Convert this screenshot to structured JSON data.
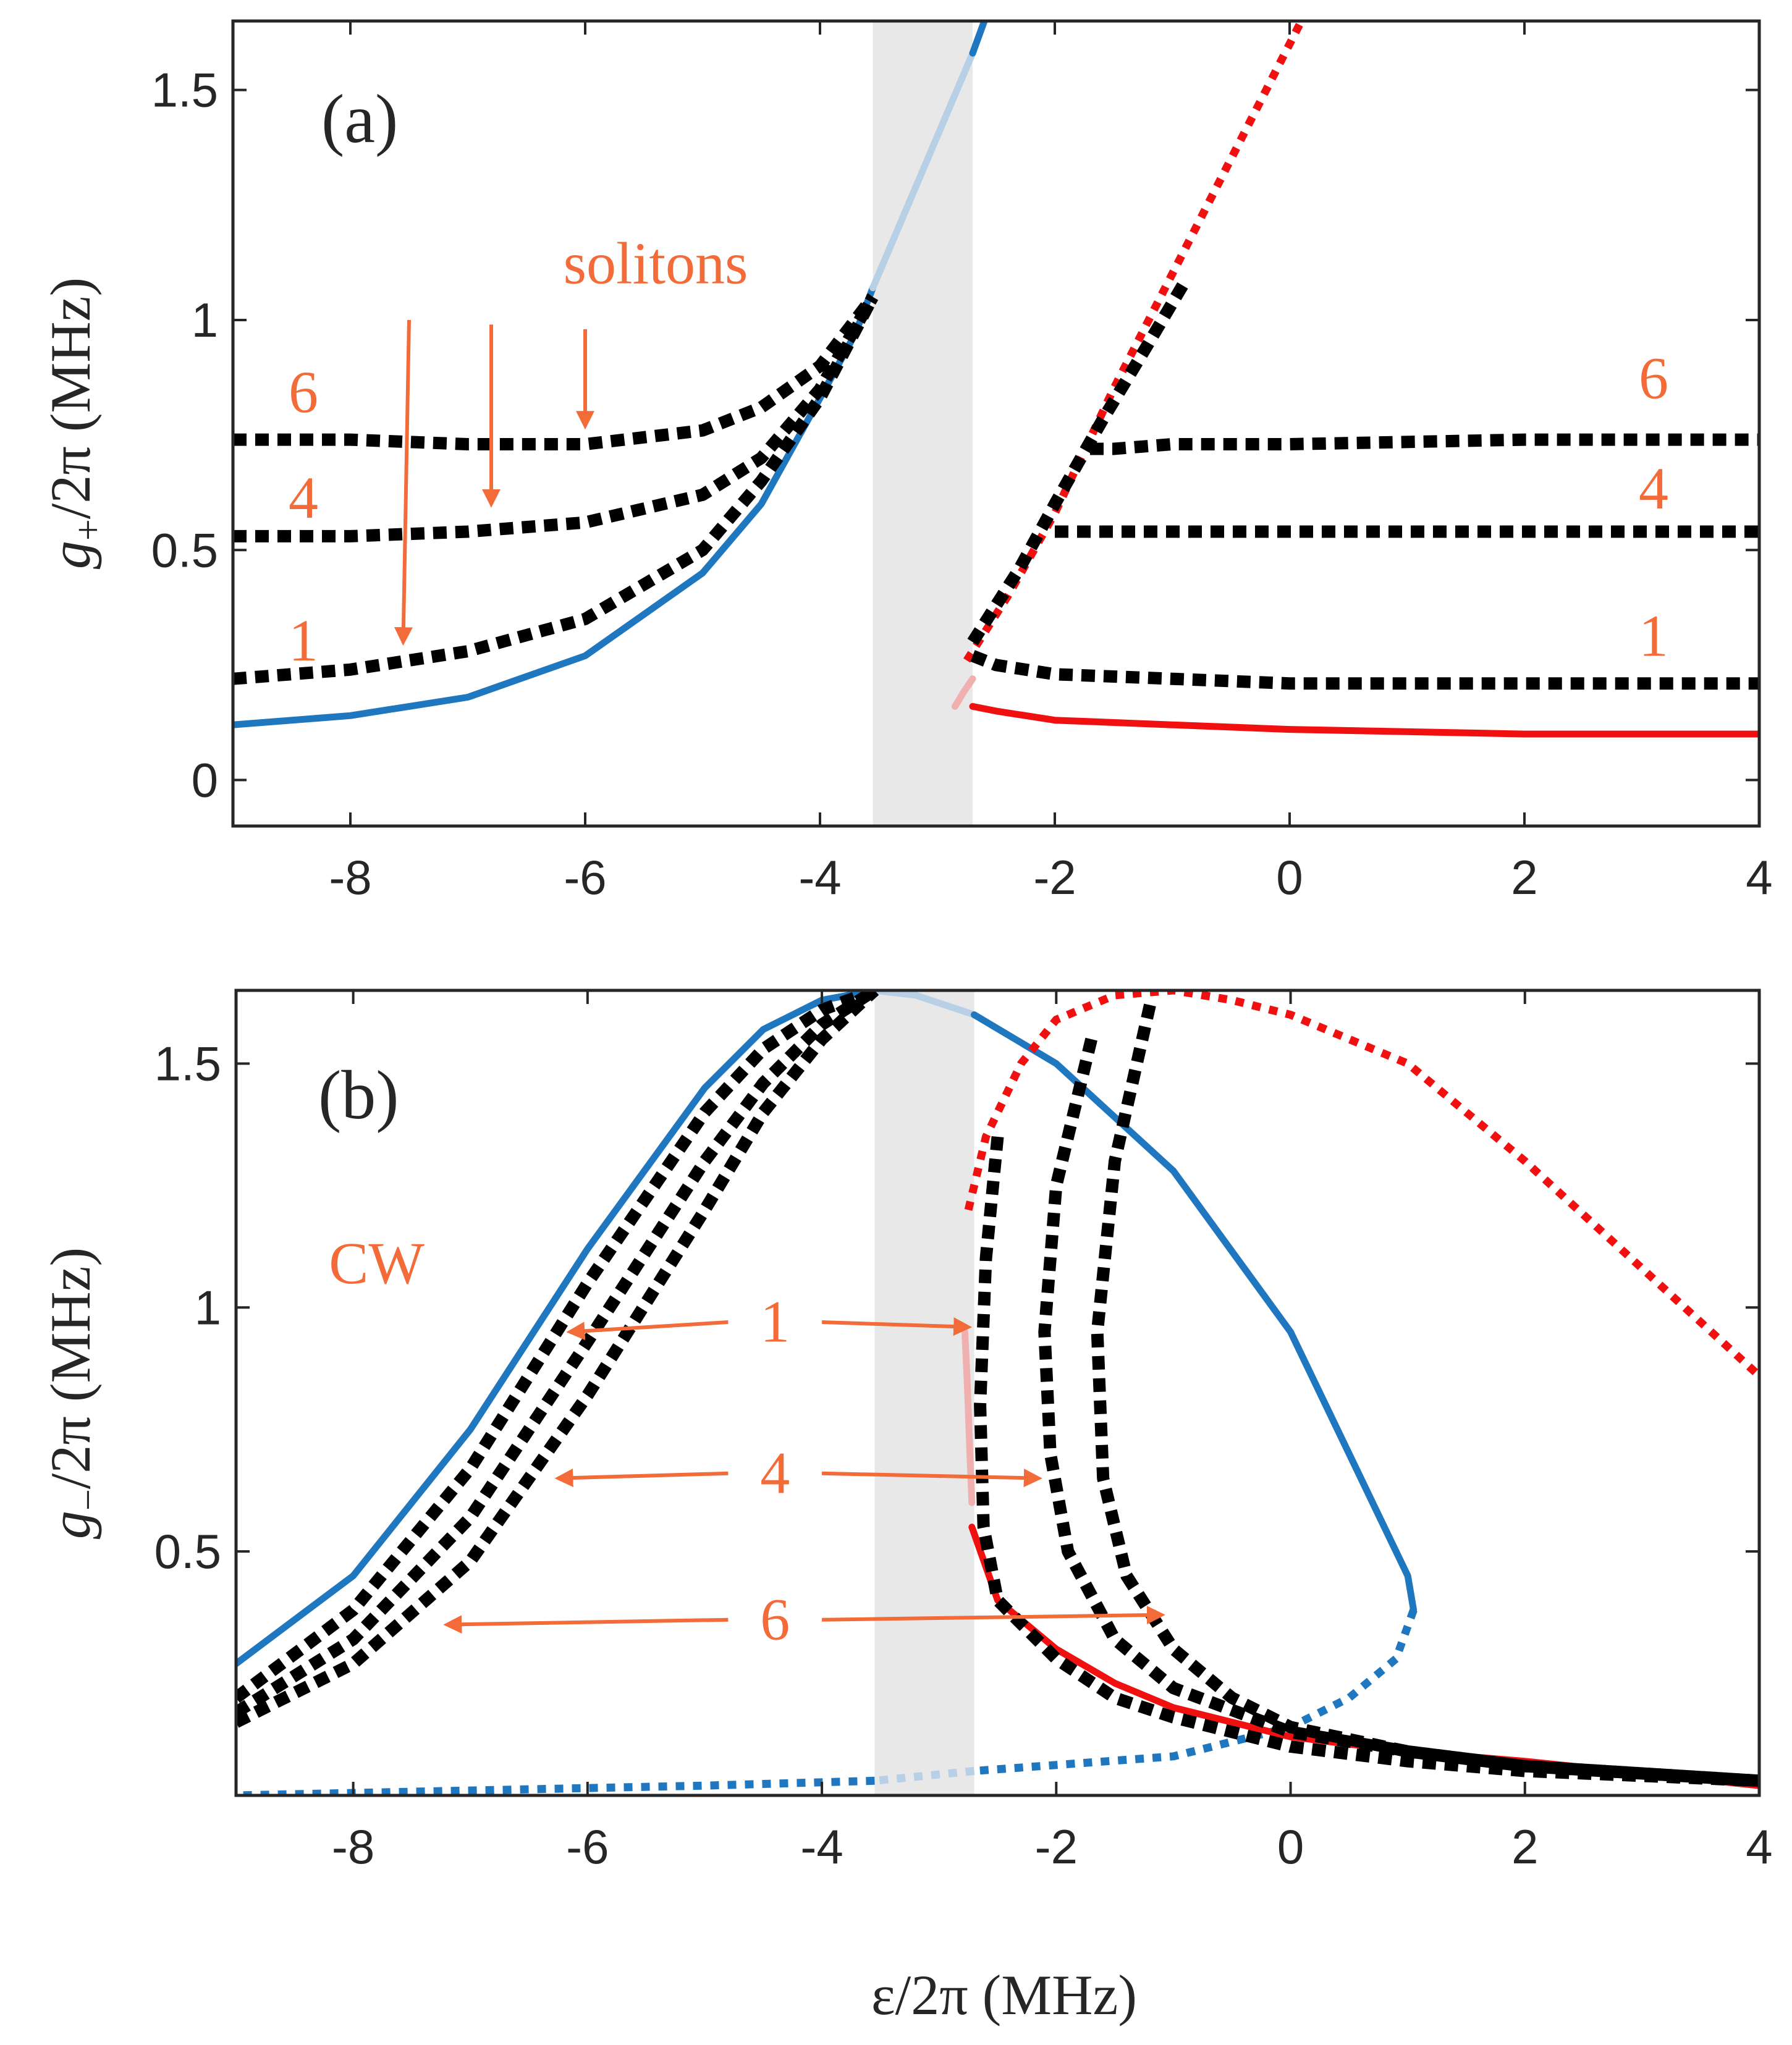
{
  "colors": {
    "blue": "#1f77c0",
    "blue_light": "#b8d0e6",
    "red": "#f01010",
    "red_light": "#f0b0b0",
    "black": "#000000",
    "orange": "#f26b38",
    "shade": "#e8e8e8",
    "axis": "#262626"
  },
  "chart_data": [
    {
      "type": "line",
      "panel_label": "(a)",
      "xlabel": "",
      "ylabel_symbol": "g",
      "ylabel_sub": "+",
      "ylabel_rest": "/2π (MHz)",
      "xlim": [
        -9,
        4
      ],
      "ylim": [
        -0.1,
        1.65
      ],
      "xticks": [
        -8,
        -6,
        -4,
        -2,
        0,
        2,
        4
      ],
      "xtick_labels": [
        "-8",
        "-6",
        "-4",
        "-2",
        "0",
        "2",
        "4"
      ],
      "yticks": [
        0,
        0.5,
        1,
        1.5
      ],
      "ytick_labels": [
        "0",
        "0.5",
        "1",
        "1.5"
      ],
      "shaded_region": [
        -3.55,
        -2.7
      ],
      "series": [
        {
          "style": "solid",
          "color": "blue",
          "x": [
            -9,
            -8,
            -7,
            -6,
            -5,
            -4.5,
            -4,
            -3.7,
            -3.55
          ],
          "y": [
            0.12,
            0.14,
            0.18,
            0.27,
            0.45,
            0.6,
            0.83,
            0.97,
            1.07
          ]
        },
        {
          "style": "solid",
          "color": "blue_light",
          "x": [
            -3.55,
            -3.3,
            -3.0,
            -2.7
          ],
          "y": [
            1.07,
            1.22,
            1.4,
            1.58
          ]
        },
        {
          "style": "solid",
          "color": "blue",
          "x": [
            -2.7,
            -2.6
          ],
          "y": [
            1.58,
            1.65
          ]
        },
        {
          "style": "solid",
          "color": "red",
          "x": [
            -2.7,
            -2.5,
            -2,
            -1,
            0,
            2,
            4
          ],
          "y": [
            0.16,
            0.15,
            0.13,
            0.12,
            0.11,
            0.1,
            0.1
          ]
        },
        {
          "style": "solid",
          "color": "red_light",
          "x": [
            -2.85,
            -2.78,
            -2.7
          ],
          "y": [
            0.16,
            0.19,
            0.22
          ]
        },
        {
          "style": "dotted",
          "color": "red",
          "x": [
            -2.75,
            -2.4,
            -2,
            -1.5,
            -1,
            -0.5,
            0,
            0.1
          ],
          "y": [
            0.26,
            0.4,
            0.58,
            0.85,
            1.1,
            1.35,
            1.6,
            1.65
          ]
        },
        {
          "style": "dotted",
          "color": "black",
          "x": [
            -9,
            -8,
            -7,
            -6,
            -5,
            -4.5,
            -4,
            -3.55
          ],
          "y": [
            0.22,
            0.24,
            0.28,
            0.35,
            0.5,
            0.65,
            0.83,
            1.05
          ]
        },
        {
          "style": "dotted",
          "color": "black",
          "x": [
            -9,
            -8,
            -7,
            -6,
            -5,
            -4.5,
            -4,
            -3.55
          ],
          "y": [
            0.53,
            0.53,
            0.54,
            0.56,
            0.62,
            0.7,
            0.85,
            1.05
          ]
        },
        {
          "style": "dotted",
          "color": "black",
          "x": [
            -9,
            -8,
            -7,
            -6,
            -5,
            -4.5,
            -4,
            -3.55
          ],
          "y": [
            0.74,
            0.74,
            0.73,
            0.73,
            0.76,
            0.81,
            0.9,
            1.05
          ]
        },
        {
          "style": "dotted",
          "color": "black",
          "x": [
            -2.7,
            -2.5,
            -2,
            -1,
            0,
            2,
            4
          ],
          "y": [
            0.27,
            0.25,
            0.23,
            0.22,
            0.21,
            0.21,
            0.21
          ]
        },
        {
          "style": "dotted",
          "color": "black",
          "x": [
            -2.7,
            -2.3,
            -2,
            -1.6,
            -1.2,
            -0.9
          ],
          "y": [
            0.3,
            0.46,
            0.6,
            0.78,
            0.95,
            1.08
          ]
        },
        {
          "style": "dotted",
          "color": "black",
          "x": [
            -2,
            -1.5,
            -1,
            0,
            2,
            4
          ],
          "y": [
            0.54,
            0.54,
            0.54,
            0.54,
            0.54,
            0.54
          ]
        },
        {
          "style": "dotted",
          "color": "black",
          "x": [
            -1.7,
            -1.5,
            -1,
            0,
            2,
            4
          ],
          "y": [
            0.72,
            0.72,
            0.73,
            0.73,
            0.74,
            0.74
          ]
        }
      ],
      "annotations": [
        {
          "text": "solitons",
          "x": -5.4,
          "y": 1.08,
          "anchor": "middle"
        },
        {
          "text": "6",
          "x": -8.4,
          "y": 0.8,
          "anchor": "middle"
        },
        {
          "text": "4",
          "x": -8.4,
          "y": 0.57,
          "anchor": "middle"
        },
        {
          "text": "1",
          "x": -8.4,
          "y": 0.26,
          "anchor": "middle"
        },
        {
          "text": "6",
          "x": 3.1,
          "y": 0.83,
          "anchor": "middle"
        },
        {
          "text": "4",
          "x": 3.1,
          "y": 0.59,
          "anchor": "middle"
        },
        {
          "text": "1",
          "x": 3.1,
          "y": 0.27,
          "anchor": "middle"
        }
      ],
      "arrows": [
        {
          "from": [
            -7.5,
            1.0
          ],
          "to": [
            -7.55,
            0.3
          ]
        },
        {
          "from": [
            -6.8,
            0.99
          ],
          "to": [
            -6.8,
            0.6
          ]
        },
        {
          "from": [
            -6.0,
            0.98
          ],
          "to": [
            -6.0,
            0.77
          ]
        }
      ]
    },
    {
      "type": "line",
      "panel_label": "(b)",
      "xlabel": "ε/2π (MHz)",
      "ylabel_symbol": "g",
      "ylabel_sub": "−",
      "ylabel_rest": "/2π (MHz)",
      "xlim": [
        -9,
        4
      ],
      "ylim": [
        0,
        1.65
      ],
      "xticks": [
        -8,
        -6,
        -4,
        -2,
        0,
        2,
        4
      ],
      "xtick_labels": [
        "-8",
        "-6",
        "-4",
        "-2",
        "0",
        "2",
        "4"
      ],
      "yticks": [
        0.5,
        1,
        1.5
      ],
      "ytick_labels": [
        "0.5",
        "1",
        "1.5"
      ],
      "shaded_region": [
        -3.55,
        -2.7
      ],
      "series": [
        {
          "style": "solid",
          "color": "blue",
          "x": [
            -9,
            -8,
            -7,
            -6,
            -5,
            -4.5,
            -4,
            -3.55
          ],
          "y": [
            0.27,
            0.45,
            0.75,
            1.12,
            1.45,
            1.57,
            1.63,
            1.65
          ]
        },
        {
          "style": "solid",
          "color": "blue_light",
          "x": [
            -3.55,
            -3.2,
            -2.7
          ],
          "y": [
            1.65,
            1.64,
            1.6
          ]
        },
        {
          "style": "solid",
          "color": "blue",
          "x": [
            -2.7,
            -2,
            -1,
            0,
            0.7,
            1.0,
            1.05
          ],
          "y": [
            1.6,
            1.5,
            1.28,
            0.95,
            0.6,
            0.45,
            0.38
          ]
        },
        {
          "style": "dotted",
          "color": "blue",
          "x": [
            1.05,
            0.9,
            0.5,
            0,
            -1,
            -2.7
          ],
          "y": [
            0.38,
            0.28,
            0.2,
            0.14,
            0.08,
            0.05
          ]
        },
        {
          "style": "dotted",
          "color": "blue_light",
          "x": [
            -2.7,
            -3.55
          ],
          "y": [
            0.05,
            0.03
          ]
        },
        {
          "style": "dotted",
          "color": "blue",
          "x": [
            -3.55,
            -5,
            -7,
            -9
          ],
          "y": [
            0.03,
            0.02,
            0.01,
            0.0
          ]
        },
        {
          "style": "dotted",
          "color": "red",
          "x": [
            -2.75,
            -2.6,
            -2.3,
            -2,
            -1.5,
            -1,
            -0.5,
            0,
            1,
            2,
            3,
            4
          ],
          "y": [
            1.2,
            1.35,
            1.5,
            1.59,
            1.64,
            1.65,
            1.63,
            1.6,
            1.5,
            1.3,
            1.08,
            0.86
          ]
        },
        {
          "style": "solid",
          "color": "red_light",
          "x": [
            -2.78,
            -2.76,
            -2.74,
            -2.72
          ],
          "y": [
            0.95,
            0.85,
            0.72,
            0.6
          ]
        },
        {
          "style": "solid",
          "color": "red",
          "x": [
            -2.72,
            -2.5,
            -2,
            -1.5,
            -1,
            0,
            1,
            2,
            4
          ],
          "y": [
            0.55,
            0.4,
            0.3,
            0.23,
            0.18,
            0.12,
            0.09,
            0.07,
            0.02
          ]
        },
        {
          "style": "dotted",
          "color": "black",
          "x": [
            -9,
            -8,
            -7,
            -6,
            -5,
            -4.5,
            -4,
            -3.55
          ],
          "y": [
            0.2,
            0.38,
            0.67,
            1.05,
            1.4,
            1.53,
            1.61,
            1.65
          ]
        },
        {
          "style": "dotted",
          "color": "black",
          "x": [
            -9,
            -8,
            -7,
            -6,
            -5,
            -4.5,
            -4,
            -3.55
          ],
          "y": [
            0.17,
            0.32,
            0.57,
            0.93,
            1.3,
            1.46,
            1.58,
            1.65
          ]
        },
        {
          "style": "dotted",
          "color": "black",
          "x": [
            -9,
            -8,
            -7,
            -6,
            -5,
            -4.5,
            -4,
            -3.55
          ],
          "y": [
            0.15,
            0.27,
            0.48,
            0.82,
            1.2,
            1.4,
            1.55,
            1.65
          ]
        },
        {
          "style": "dotted",
          "color": "black",
          "x": [
            -2.5,
            -2.6,
            -2.65,
            -2.62,
            -2.5,
            -2,
            -1.5,
            -1,
            0,
            1,
            2,
            4
          ],
          "y": [
            1.35,
            1.1,
            0.8,
            0.55,
            0.4,
            0.28,
            0.2,
            0.16,
            0.1,
            0.07,
            0.05,
            0.03
          ]
        },
        {
          "style": "dotted",
          "color": "black",
          "x": [
            -1.7,
            -2.0,
            -2.1,
            -2.05,
            -1.9,
            -1.5,
            -1,
            0,
            1,
            2,
            4
          ],
          "y": [
            1.55,
            1.25,
            0.95,
            0.7,
            0.5,
            0.32,
            0.22,
            0.13,
            0.09,
            0.06,
            0.03
          ]
        },
        {
          "style": "dotted",
          "color": "black",
          "x": [
            -1.2,
            -1.5,
            -1.65,
            -1.6,
            -1.4,
            -1,
            -0.5,
            0,
            1,
            2,
            4
          ],
          "y": [
            1.62,
            1.3,
            0.95,
            0.65,
            0.45,
            0.3,
            0.2,
            0.14,
            0.09,
            0.06,
            0.03
          ]
        }
      ],
      "annotations": [
        {
          "text": "CW",
          "x": -7.8,
          "y": 1.05,
          "anchor": "middle"
        },
        {
          "text": "1",
          "x": -4.4,
          "y": 0.93,
          "anchor": "middle"
        },
        {
          "text": "4",
          "x": -4.4,
          "y": 0.62,
          "anchor": "middle"
        },
        {
          "text": "6",
          "x": -4.4,
          "y": 0.32,
          "anchor": "middle"
        }
      ],
      "arrows": [
        {
          "from": [
            -4.8,
            0.97
          ],
          "to": [
            -6.15,
            0.95
          ]
        },
        {
          "from": [
            -4.0,
            0.97
          ],
          "to": [
            -2.75,
            0.96
          ]
        },
        {
          "from": [
            -4.8,
            0.66
          ],
          "to": [
            -6.25,
            0.65
          ]
        },
        {
          "from": [
            -4.0,
            0.66
          ],
          "to": [
            -2.15,
            0.65
          ]
        },
        {
          "from": [
            -4.8,
            0.36
          ],
          "to": [
            -7.2,
            0.35
          ]
        },
        {
          "from": [
            -4.0,
            0.36
          ],
          "to": [
            -1.1,
            0.37
          ]
        }
      ]
    }
  ]
}
